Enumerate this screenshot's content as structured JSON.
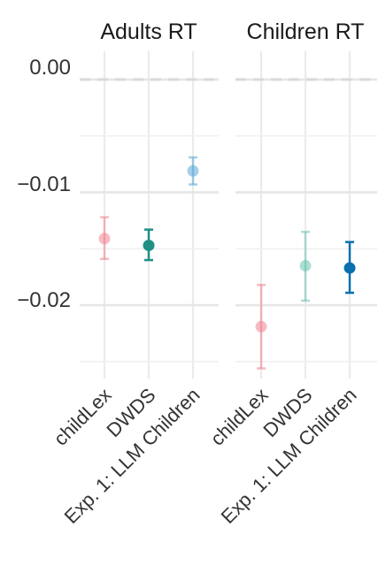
{
  "chart_data": {
    "type": "scatter",
    "subtype": "point-with-errorbars",
    "facets": [
      {
        "title": "Adults RT",
        "points": [
          {
            "category": "childLex",
            "value": -0.0141,
            "ci": [
              -0.0159,
              -0.0122
            ],
            "color": "#f0838f",
            "filled": false
          },
          {
            "category": "DWDS",
            "value": -0.0147,
            "ci": [
              -0.016,
              -0.0133
            ],
            "color": "#1f9086",
            "filled": true
          },
          {
            "category": "Exp. 1: LLM Children",
            "value": -0.0081,
            "ci": [
              -0.0093,
              -0.0069
            ],
            "color": "#5aa8d6",
            "filled": false
          }
        ]
      },
      {
        "title": "Children RT",
        "points": [
          {
            "category": "childLex",
            "value": -0.0219,
            "ci": [
              -0.0256,
              -0.0182
            ],
            "color": "#f0838f",
            "filled": false
          },
          {
            "category": "DWDS",
            "value": -0.0165,
            "ci": [
              -0.0196,
              -0.0135
            ],
            "color": "#6cc2b2",
            "filled": false
          },
          {
            "category": "Exp. 1: LLM Children",
            "value": -0.0167,
            "ci": [
              -0.0189,
              -0.0144
            ],
            "color": "#0a6fae",
            "filled": true
          }
        ]
      }
    ],
    "categories": [
      "childLex",
      "DWDS",
      "Exp. 1: LLM Children"
    ],
    "y_ticks": [
      0.0,
      -0.01,
      -0.02
    ],
    "y_tick_labels": [
      "0.00",
      "−0.01",
      "−0.02"
    ],
    "ylim": [
      -0.0265,
      0.0025
    ],
    "reference_line": 0.0,
    "xlabel": "",
    "ylabel": "",
    "grid": true,
    "legend": "none"
  }
}
